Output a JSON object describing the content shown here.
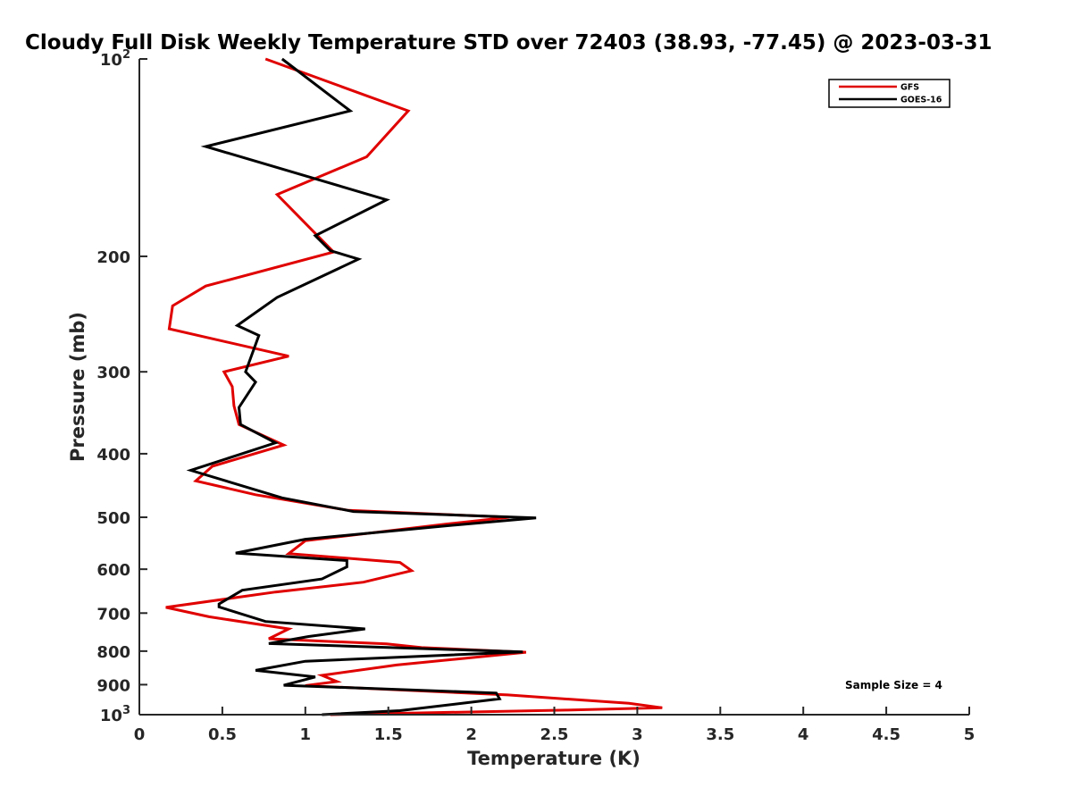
{
  "chart_data": {
    "type": "line",
    "title": "Cloudy Full Disk Weekly Temperature STD over 72403 (38.93, -77.45) @ 2023-03-31",
    "xlabel": "Temperature (K)",
    "ylabel": "Pressure (mb)",
    "xlim": [
      0,
      5
    ],
    "ylim": [
      100,
      1000
    ],
    "y_scale": "log",
    "y_reversed": true,
    "x_ticks": [
      "0",
      "0.5",
      "1",
      "1.5",
      "2",
      "2.5",
      "3",
      "3.5",
      "4",
      "4.5",
      "5"
    ],
    "y_ticks": [
      {
        "value": 100,
        "base": "10",
        "exp": "2"
      },
      {
        "value": 200,
        "label": "200"
      },
      {
        "value": 300,
        "label": "300"
      },
      {
        "value": 400,
        "label": "400"
      },
      {
        "value": 500,
        "label": "500"
      },
      {
        "value": 600,
        "label": "600"
      },
      {
        "value": 700,
        "label": "700"
      },
      {
        "value": 800,
        "label": "800"
      },
      {
        "value": 900,
        "label": "900"
      },
      {
        "value": 1000,
        "base": "10",
        "exp": "3"
      }
    ],
    "grid": false,
    "legend_position": "top-right",
    "annotation": "Sample Size = 4",
    "series": [
      {
        "name": "GFS",
        "color": "#e00000",
        "points": [
          [
            0.76,
            100
          ],
          [
            1.62,
            120
          ],
          [
            1.37,
            141
          ],
          [
            0.83,
            161
          ],
          [
            1.17,
            197
          ],
          [
            0.4,
            222
          ],
          [
            0.2,
            238
          ],
          [
            0.18,
            258
          ],
          [
            0.9,
            284
          ],
          [
            0.51,
            300
          ],
          [
            0.56,
            316
          ],
          [
            0.57,
            338
          ],
          [
            0.6,
            361
          ],
          [
            0.87,
            388
          ],
          [
            0.44,
            418
          ],
          [
            0.34,
            440
          ],
          [
            0.7,
            462
          ],
          [
            1.26,
            488
          ],
          [
            2.23,
            500
          ],
          [
            1.85,
            512
          ],
          [
            1.0,
            543
          ],
          [
            0.9,
            568
          ],
          [
            1.57,
            586
          ],
          [
            1.64,
            603
          ],
          [
            1.35,
            628
          ],
          [
            0.82,
            650
          ],
          [
            0.16,
            686
          ],
          [
            0.42,
            709
          ],
          [
            0.9,
            740
          ],
          [
            0.78,
            766
          ],
          [
            1.49,
            780
          ],
          [
            1.7,
            790
          ],
          [
            2.33,
            803
          ],
          [
            1.55,
            840
          ],
          [
            1.1,
            871
          ],
          [
            1.19,
            890
          ],
          [
            1.0,
            903
          ],
          [
            2.22,
            933
          ],
          [
            2.95,
            961
          ],
          [
            3.15,
            976
          ],
          [
            2.57,
            984
          ],
          [
            1.15,
            1000
          ]
        ]
      },
      {
        "name": "GOES-16",
        "color": "#000000",
        "points": [
          [
            0.86,
            100
          ],
          [
            1.27,
            120
          ],
          [
            0.4,
            136
          ],
          [
            1.49,
            164
          ],
          [
            1.06,
            186
          ],
          [
            1.15,
            196
          ],
          [
            1.32,
            202
          ],
          [
            0.83,
            231
          ],
          [
            0.59,
            255
          ],
          [
            0.72,
            264
          ],
          [
            0.64,
            300
          ],
          [
            0.7,
            311
          ],
          [
            0.6,
            340
          ],
          [
            0.61,
            361
          ],
          [
            0.82,
            385
          ],
          [
            0.31,
            424
          ],
          [
            0.86,
            467
          ],
          [
            1.29,
            490
          ],
          [
            2.39,
            501
          ],
          [
            1.82,
            516
          ],
          [
            1.0,
            540
          ],
          [
            0.58,
            567
          ],
          [
            1.25,
            582
          ],
          [
            1.25,
            595
          ],
          [
            1.1,
            621
          ],
          [
            0.62,
            646
          ],
          [
            0.48,
            678
          ],
          [
            0.48,
            685
          ],
          [
            0.76,
            721
          ],
          [
            1.36,
            740
          ],
          [
            1.02,
            760
          ],
          [
            0.78,
            779
          ],
          [
            2.31,
            802
          ],
          [
            1.0,
            829
          ],
          [
            0.7,
            856
          ],
          [
            1.06,
            876
          ],
          [
            0.87,
            902
          ],
          [
            2.15,
            927
          ],
          [
            2.17,
            946
          ],
          [
            1.57,
            986
          ],
          [
            1.1,
            1000
          ]
        ]
      }
    ]
  }
}
